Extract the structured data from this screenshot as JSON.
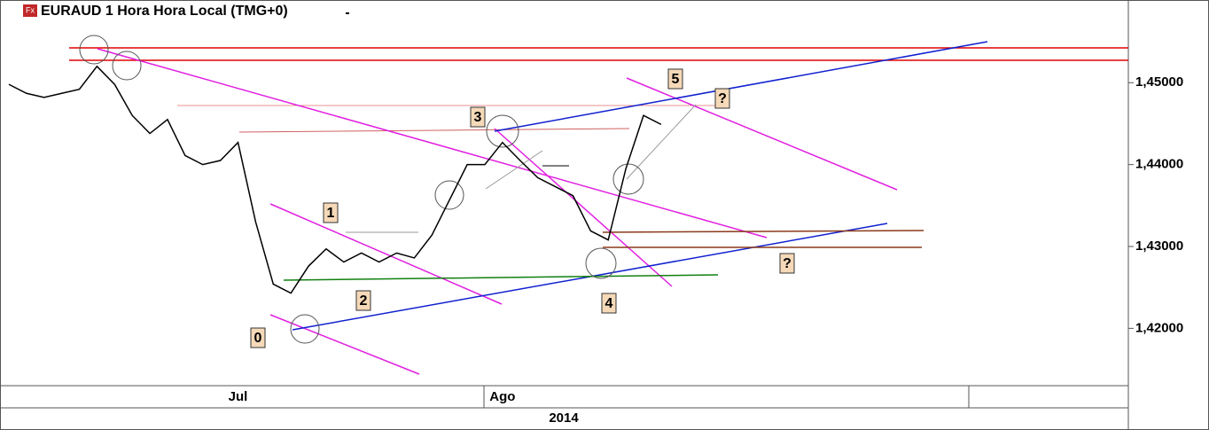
{
  "chart_data": {
    "type": "line",
    "title": "EURAUD 1 Hora Hora Local (TMG+0)",
    "source_icon": "Fx",
    "x_group_label": "2014",
    "categories": [
      null,
      null,
      null,
      null,
      null,
      null,
      null,
      null,
      null,
      null,
      null,
      null,
      null,
      "Jul",
      null,
      null,
      null,
      null,
      null,
      null,
      null,
      null,
      null,
      null,
      null,
      null,
      null,
      null,
      "Ago",
      null,
      null,
      null,
      null,
      null,
      null,
      null,
      null,
      null,
      null,
      null,
      null,
      null,
      null,
      null,
      null,
      null,
      null,
      null,
      null,
      null,
      null,
      null,
      null,
      null,
      null,
      null,
      null,
      null,
      null,
      null,
      null,
      null,
      null,
      null
    ],
    "series": [
      {
        "name": "EURAUD",
        "color": "#000000",
        "values": [
          1.4498,
          1.4487,
          1.4482,
          1.4487,
          1.4492,
          1.452,
          1.4498,
          1.446,
          1.4438,
          1.4455,
          1.4411,
          1.44,
          1.4405,
          1.4427,
          1.433,
          1.4254,
          1.4243,
          1.4276,
          1.4297,
          1.4281,
          1.4292,
          1.4281,
          1.4292,
          1.4286,
          1.4314,
          1.4357,
          1.44,
          1.44,
          1.4427,
          1.4405,
          1.4384,
          1.4373,
          1.4362,
          1.4319,
          1.4308,
          1.4395,
          1.446,
          1.4449,
          null,
          null,
          null,
          null,
          null,
          null,
          null,
          null,
          null,
          null,
          null,
          null,
          null,
          null,
          null,
          null,
          null,
          null,
          null,
          null,
          null,
          null,
          null,
          null,
          null,
          null
        ]
      }
    ],
    "ylim": [
      1.413,
      1.4601
    ],
    "yticks": [
      {
        "value": 1.42,
        "label": "1,42000"
      },
      {
        "value": 1.43,
        "label": "1,43000"
      },
      {
        "value": 1.44,
        "label": "1,44000"
      },
      {
        "value": 1.45,
        "label": "1,45000"
      }
    ],
    "annotations": [
      "0",
      "1",
      "2",
      "3",
      "4",
      "5",
      "?",
      "?"
    ]
  }
}
